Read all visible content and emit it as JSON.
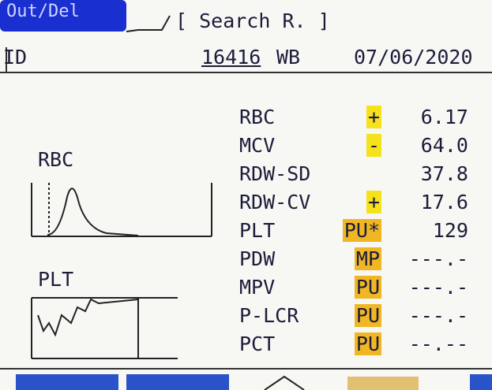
{
  "tabs": {
    "active": "Out/Del",
    "search": "[ Search R. ]"
  },
  "header": {
    "id_label": "ID",
    "id": "16416",
    "mode": "WB",
    "date": "07/06/2020"
  },
  "histograms": {
    "rbc": "RBC",
    "plt": "PLT"
  },
  "results": [
    {
      "name": "RBC",
      "flag": "+",
      "value": "6.17"
    },
    {
      "name": "MCV",
      "flag": "-",
      "value": "64.0"
    },
    {
      "name": "RDW-SD",
      "value": "37.8"
    },
    {
      "name": "RDW-CV",
      "flag": "+",
      "value": "17.6"
    },
    {
      "name": "PLT",
      "flag": "PU*",
      "value": "129"
    },
    {
      "name": "PDW",
      "flag": "MP",
      "value": "---.-"
    },
    {
      "name": "MPV",
      "flag": "PU",
      "value": "---.-"
    },
    {
      "name": "P-LCR",
      "flag": "PU",
      "value": "---.-"
    },
    {
      "name": "PCT",
      "flag": "PU",
      "value": "--.--"
    }
  ]
}
